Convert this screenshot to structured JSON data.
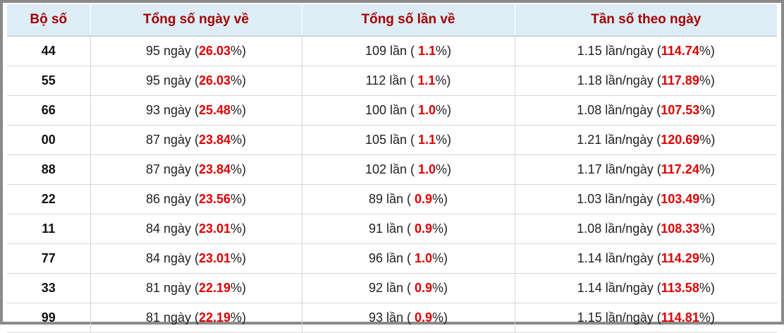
{
  "table": {
    "header": [
      "Bộ số",
      "Tổng số ngày về",
      "Tổng số lần về",
      "Tần số theo ngày"
    ],
    "rows": [
      [
        "44",
        {
          "pre": "95 ngày (",
          "hi": "26.03",
          "post": "%)"
        },
        {
          "pre": "109 lần ( ",
          "hi": "1.1",
          "post": "%)"
        },
        {
          "pre": "1.15 lần/ngày (",
          "hi": "114.74",
          "post": "%)"
        }
      ],
      [
        "55",
        {
          "pre": "95 ngày (",
          "hi": "26.03",
          "post": "%)"
        },
        {
          "pre": "112 lần ( ",
          "hi": "1.1",
          "post": "%)"
        },
        {
          "pre": "1.18 lần/ngày (",
          "hi": "117.89",
          "post": "%)"
        }
      ],
      [
        "66",
        {
          "pre": "93 ngày (",
          "hi": "25.48",
          "post": "%)"
        },
        {
          "pre": "100 lần ( ",
          "hi": "1.0",
          "post": "%)"
        },
        {
          "pre": "1.08 lần/ngày (",
          "hi": "107.53",
          "post": "%)"
        }
      ],
      [
        "00",
        {
          "pre": "87 ngày (",
          "hi": "23.84",
          "post": "%)"
        },
        {
          "pre": "105 lần ( ",
          "hi": "1.1",
          "post": "%)"
        },
        {
          "pre": "1.21 lần/ngày (",
          "hi": "120.69",
          "post": "%)"
        }
      ],
      [
        "88",
        {
          "pre": "87 ngày (",
          "hi": "23.84",
          "post": "%)"
        },
        {
          "pre": "102 lần ( ",
          "hi": "1.0",
          "post": "%)"
        },
        {
          "pre": "1.17 lần/ngày (",
          "hi": "117.24",
          "post": "%)"
        }
      ],
      [
        "22",
        {
          "pre": "86 ngày (",
          "hi": "23.56",
          "post": "%)"
        },
        {
          "pre": "89 lần ( ",
          "hi": "0.9",
          "post": "%)"
        },
        {
          "pre": "1.03 lần/ngày (",
          "hi": "103.49",
          "post": "%)"
        }
      ],
      [
        "11",
        {
          "pre": "84 ngày (",
          "hi": "23.01",
          "post": "%)"
        },
        {
          "pre": "91 lần ( ",
          "hi": "0.9",
          "post": "%)"
        },
        {
          "pre": "1.08 lần/ngày (",
          "hi": "108.33",
          "post": "%)"
        }
      ],
      [
        "77",
        {
          "pre": "84 ngày (",
          "hi": "23.01",
          "post": "%)"
        },
        {
          "pre": "96 lần ( ",
          "hi": "1.0",
          "post": "%)"
        },
        {
          "pre": "1.14 lần/ngày (",
          "hi": "114.29",
          "post": "%)"
        }
      ],
      [
        "33",
        {
          "pre": "81 ngày (",
          "hi": "22.19",
          "post": "%)"
        },
        {
          "pre": "92 lần ( ",
          "hi": "0.9",
          "post": "%)"
        },
        {
          "pre": "1.14 lần/ngày (",
          "hi": "113.58",
          "post": "%)"
        }
      ],
      [
        "99",
        {
          "pre": "81 ngày (",
          "hi": "22.19",
          "post": "%)"
        },
        {
          "pre": "93 lần ( ",
          "hi": "0.9",
          "post": "%)"
        },
        {
          "pre": "1.15 lần/ngày (",
          "hi": "114.81",
          "post": "%)"
        }
      ]
    ]
  }
}
